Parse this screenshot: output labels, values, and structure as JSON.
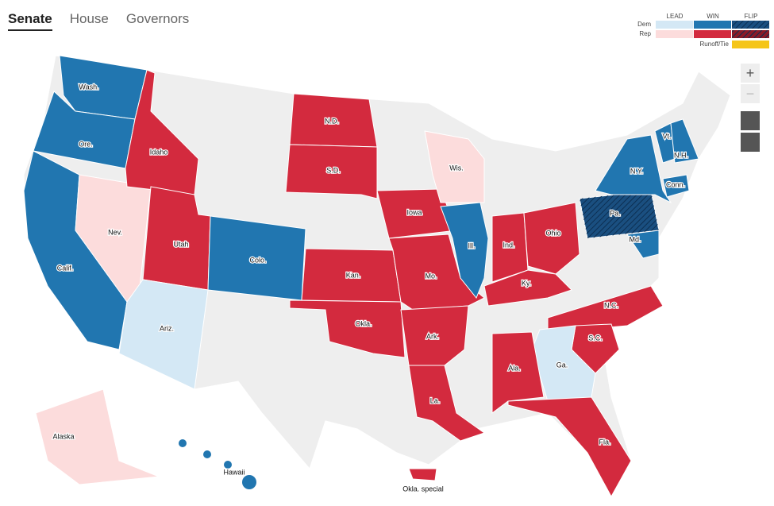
{
  "tabs": [
    "Senate",
    "House",
    "Governors"
  ],
  "legend": {
    "columns": [
      "LEAD",
      "WIN",
      "FLIP"
    ],
    "rows": [
      {
        "label": "Dem",
        "colors": [
          "#d4e8f5",
          "#2176b0",
          "#1a4f80"
        ]
      },
      {
        "label": "Rep",
        "colors": [
          "#fcdcdc",
          "#d32a3e",
          "#8b1a27"
        ]
      }
    ],
    "runoff": {
      "label": "Runoff/Tie",
      "color": "#f5c518"
    }
  },
  "states": [
    {
      "label": "Wash.",
      "color": "#2176b0"
    },
    {
      "label": "Ore.",
      "color": "#2176b0"
    },
    {
      "label": "Calif.",
      "color": "#2176b0"
    },
    {
      "label": "Nev.",
      "color": "#fcdcdc"
    },
    {
      "label": "Idaho",
      "color": "#d32a3e"
    },
    {
      "label": "Utah",
      "color": "#d32a3e"
    },
    {
      "label": "Ariz.",
      "color": "#d4e8f5"
    },
    {
      "label": "Colo.",
      "color": "#2176b0"
    },
    {
      "label": "N.D.",
      "color": "#d32a3e"
    },
    {
      "label": "S.D.",
      "color": "#d32a3e"
    },
    {
      "label": "Kan.",
      "color": "#d32a3e"
    },
    {
      "label": "Okla.",
      "color": "#d32a3e"
    },
    {
      "label": "Iowa",
      "color": "#d32a3e"
    },
    {
      "label": "Mo.",
      "color": "#d32a3e"
    },
    {
      "label": "Ark.",
      "color": "#d32a3e"
    },
    {
      "label": "La.",
      "color": "#d32a3e"
    },
    {
      "label": "Ill.",
      "color": "#2176b0"
    },
    {
      "label": "Ind.",
      "color": "#d32a3e"
    },
    {
      "label": "Ohio",
      "color": "#d32a3e"
    },
    {
      "label": "Ky.",
      "color": "#d32a3e"
    },
    {
      "label": "Wis.",
      "color": "#fcdcdc"
    },
    {
      "label": "N.C.",
      "color": "#d32a3e"
    },
    {
      "label": "S.C.",
      "color": "#d32a3e"
    },
    {
      "label": "Ga.",
      "color": "#d4e8f5"
    },
    {
      "label": "Ala.",
      "color": "#d32a3e"
    },
    {
      "label": "Fla.",
      "color": "#d32a3e"
    },
    {
      "label": "Pa.",
      "color": "#1a4f80",
      "flip": true
    },
    {
      "label": "N.Y.",
      "color": "#2176b0"
    },
    {
      "label": "Md.",
      "color": "#2176b0"
    },
    {
      "label": "Vt.",
      "color": "#2176b0"
    },
    {
      "label": "N.H.",
      "color": "#2176b0"
    },
    {
      "label": "Conn.",
      "color": "#2176b0"
    },
    {
      "label": "Alaska",
      "color": "#fcdcdc"
    },
    {
      "label": "Hawaii",
      "color": "#2176b0"
    },
    {
      "label": "Okla. special",
      "color": "#d32a3e"
    }
  ]
}
